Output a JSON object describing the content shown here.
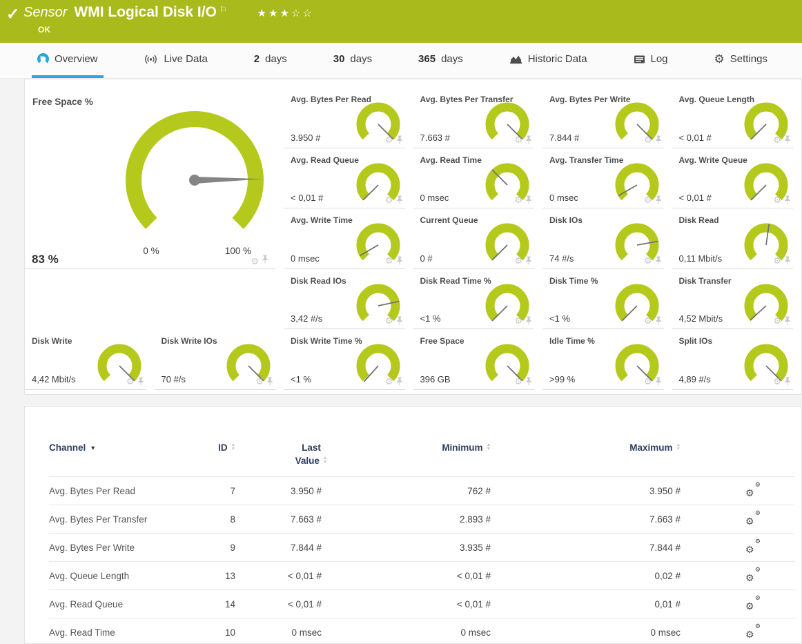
{
  "colors": {
    "header_green": "#a9ba1c",
    "gauge_green": "#b4c91c",
    "accent_blue": "#2ba6dc",
    "table_header_navy": "#2e3e5e",
    "needle_gray": "#6f6f6f",
    "icon_gray": "#c9c9c9"
  },
  "header": {
    "kind_label": "Sensor",
    "title": "WMI Logical Disk I/O",
    "status_text": "OK",
    "rating": {
      "filled": 3,
      "total": 5
    }
  },
  "tabs": [
    {
      "id": "overview",
      "label": "Overview",
      "icon": "gauge",
      "active": true
    },
    {
      "id": "live-data",
      "label": "Live Data",
      "icon": "live"
    },
    {
      "id": "2-days",
      "num": "2",
      "label": "days"
    },
    {
      "id": "30-days",
      "num": "30",
      "label": "days"
    },
    {
      "id": "365-days",
      "num": "365",
      "label": "days"
    },
    {
      "id": "historic-data",
      "label": "Historic Data",
      "icon": "chart"
    },
    {
      "id": "log",
      "label": "Log",
      "icon": "log"
    },
    {
      "id": "settings",
      "label": "Settings",
      "icon": "gear"
    }
  ],
  "primary_gauge": {
    "title": "Free Space %",
    "value": "83 %",
    "min_label": "0 %",
    "max_label": "100 %",
    "needle_deg": 89
  },
  "gauges": [
    {
      "id": "avg-bytes-per-read",
      "title": "Avg. Bytes Per Read",
      "value": "3.950 #",
      "needle_deg": 135,
      "col": 3,
      "row": 1
    },
    {
      "id": "avg-bytes-per-transfer",
      "title": "Avg. Bytes Per Transfer",
      "value": "7.663 #",
      "needle_deg": 135,
      "col": 4,
      "row": 1
    },
    {
      "id": "avg-bytes-per-write",
      "title": "Avg. Bytes Per Write",
      "value": "7.844 #",
      "needle_deg": 135,
      "col": 5,
      "row": 1
    },
    {
      "id": "avg-queue-length",
      "title": "Avg. Queue Length",
      "value": "< 0,01 #",
      "needle_deg": 225,
      "col": 6,
      "row": 1
    },
    {
      "id": "avg-read-queue",
      "title": "Avg. Read Queue",
      "value": "< 0,01 #",
      "needle_deg": 225,
      "col": 3,
      "row": 2
    },
    {
      "id": "avg-read-time",
      "title": "Avg. Read Time",
      "value": "0 msec",
      "needle_deg": 315,
      "col": 4,
      "row": 2
    },
    {
      "id": "avg-transfer-time",
      "title": "Avg. Transfer Time",
      "value": "0 msec",
      "needle_deg": 240,
      "col": 5,
      "row": 2
    },
    {
      "id": "avg-write-queue",
      "title": "Avg. Write Queue",
      "value": "< 0,01 #",
      "needle_deg": 225,
      "col": 6,
      "row": 2
    },
    {
      "id": "avg-write-time",
      "title": "Avg. Write Time",
      "value": "0 msec",
      "needle_deg": 240,
      "col": 3,
      "row": 3
    },
    {
      "id": "current-queue",
      "title": "Current Queue",
      "value": "0 #",
      "needle_deg": 225,
      "col": 4,
      "row": 3
    },
    {
      "id": "disk-ios",
      "title": "Disk IOs",
      "value": "74 #/s",
      "needle_deg": 80,
      "col": 5,
      "row": 3
    },
    {
      "id": "disk-read",
      "title": "Disk Read",
      "value": "0,11 Mbit/s",
      "needle_deg": 8,
      "col": 6,
      "row": 3
    },
    {
      "id": "disk-read-ios",
      "title": "Disk Read IOs",
      "value": "3,42 #/s",
      "needle_deg": 78,
      "col": 3,
      "row": 4
    },
    {
      "id": "disk-read-time-pct",
      "title": "Disk Read Time %",
      "value": "<1 %",
      "needle_deg": 225,
      "col": 4,
      "row": 4
    },
    {
      "id": "disk-time-pct",
      "title": "Disk Time %",
      "value": "<1 %",
      "needle_deg": 225,
      "col": 5,
      "row": 4
    },
    {
      "id": "disk-transfer",
      "title": "Disk Transfer",
      "value": "4,52 Mbit/s",
      "needle_deg": 228,
      "col": 6,
      "row": 4
    },
    {
      "id": "disk-write",
      "title": "Disk Write",
      "value": "4,42 Mbit/s",
      "needle_deg": 135,
      "col": 1,
      "row": 5
    },
    {
      "id": "disk-write-ios",
      "title": "Disk Write IOs",
      "value": "70 #/s",
      "needle_deg": 135,
      "col": 2,
      "row": 5
    },
    {
      "id": "disk-write-time-pct",
      "title": "Disk Write Time %",
      "value": "<1 %",
      "needle_deg": 222,
      "col": 3,
      "row": 5
    },
    {
      "id": "free-space",
      "title": "Free Space",
      "value": "396 GB",
      "needle_deg": 135,
      "col": 4,
      "row": 5
    },
    {
      "id": "idle-time-pct",
      "title": "Idle Time %",
      "value": ">99 %",
      "needle_deg": 135,
      "col": 5,
      "row": 5
    },
    {
      "id": "split-ios",
      "title": "Split IOs",
      "value": "4,89 #/s",
      "needle_deg": 135,
      "col": 6,
      "row": 5
    }
  ],
  "table": {
    "headers": [
      {
        "id": "channel",
        "label": "Channel",
        "sort": "desc"
      },
      {
        "id": "id",
        "label": "ID",
        "sort": "both"
      },
      {
        "id": "last-value",
        "label": "Last Value",
        "sort": "both",
        "wrap": true
      },
      {
        "id": "minimum",
        "label": "Minimum",
        "sort": "both"
      },
      {
        "id": "maximum",
        "label": "Maximum",
        "sort": "both"
      },
      {
        "id": "settings",
        "label": "",
        "sort": "none"
      }
    ],
    "rows": [
      {
        "channel": "Avg. Bytes Per Read",
        "id": "7",
        "last": "3.950 #",
        "min": "762 #",
        "max": "3.950 #"
      },
      {
        "channel": "Avg. Bytes Per Transfer",
        "id": "8",
        "last": "7.663 #",
        "min": "2.893 #",
        "max": "7.663 #"
      },
      {
        "channel": "Avg. Bytes Per Write",
        "id": "9",
        "last": "7.844 #",
        "min": "3.935 #",
        "max": "7.844 #"
      },
      {
        "channel": "Avg. Queue Length",
        "id": "13",
        "last": "< 0,01 #",
        "min": "< 0,01 #",
        "max": "0,02 #"
      },
      {
        "channel": "Avg. Read Queue",
        "id": "14",
        "last": "< 0,01 #",
        "min": "< 0,01 #",
        "max": "0,01 #"
      },
      {
        "channel": "Avg. Read Time",
        "id": "10",
        "last": "0 msec",
        "min": "0 msec",
        "max": "0 msec"
      }
    ]
  }
}
